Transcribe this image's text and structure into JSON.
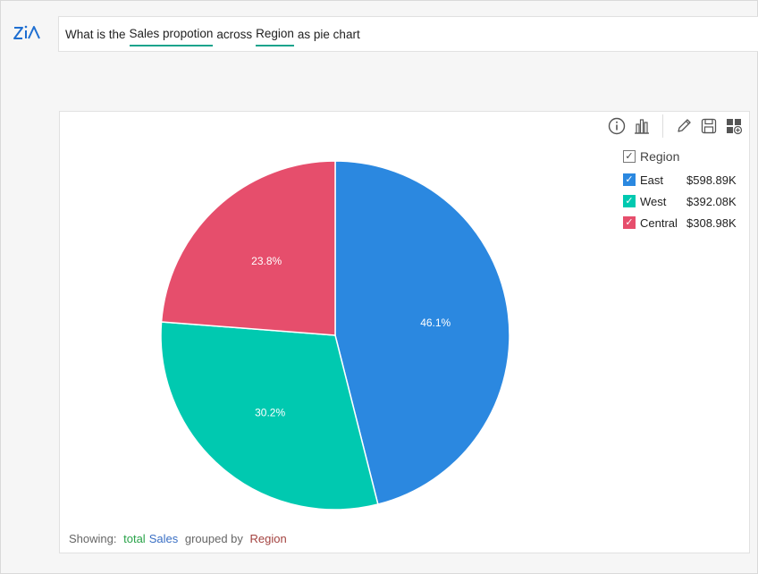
{
  "logo": {
    "icon": "zia-logo-icon",
    "color": "#1f6fd1"
  },
  "query": {
    "parts": [
      {
        "text": "What is the",
        "highlight": false
      },
      {
        "text": "Sales propotion",
        "highlight": true
      },
      {
        "text": "across",
        "highlight": false
      },
      {
        "text": "Region",
        "highlight": true
      },
      {
        "text": "as pie chart",
        "highlight": false
      }
    ]
  },
  "toolbar": {
    "icons": [
      "info-icon",
      "bar-chart-icon",
      "edit-icon",
      "save-icon",
      "add-dashboard-icon"
    ]
  },
  "legend": {
    "title": "Region",
    "items": [
      {
        "name": "East",
        "value": "$598.89K",
        "color": "#2b88e0"
      },
      {
        "name": "West",
        "value": "$392.08K",
        "color": "#00c9b0"
      },
      {
        "name": "Central",
        "value": "$308.98K",
        "color": "#e64e6c"
      }
    ]
  },
  "chart_data": {
    "type": "pie",
    "categories": [
      "East",
      "West",
      "Central"
    ],
    "values": [
      46.1,
      30.2,
      23.8
    ],
    "labels": [
      "46.1%",
      "30.2%",
      "23.8%"
    ],
    "colors": [
      "#2b88e0",
      "#00c9b0",
      "#e64e6c"
    ],
    "title": "",
    "legend_placement": "top-right"
  },
  "footer": {
    "prefix": "Showing:",
    "aggregate": "total",
    "measure": "Sales",
    "middle": "grouped by",
    "dimension": "Region",
    "aggregate_color": "#2aa34a",
    "measure_color": "#3a6fc4",
    "dimension_color": "#a3423f"
  }
}
